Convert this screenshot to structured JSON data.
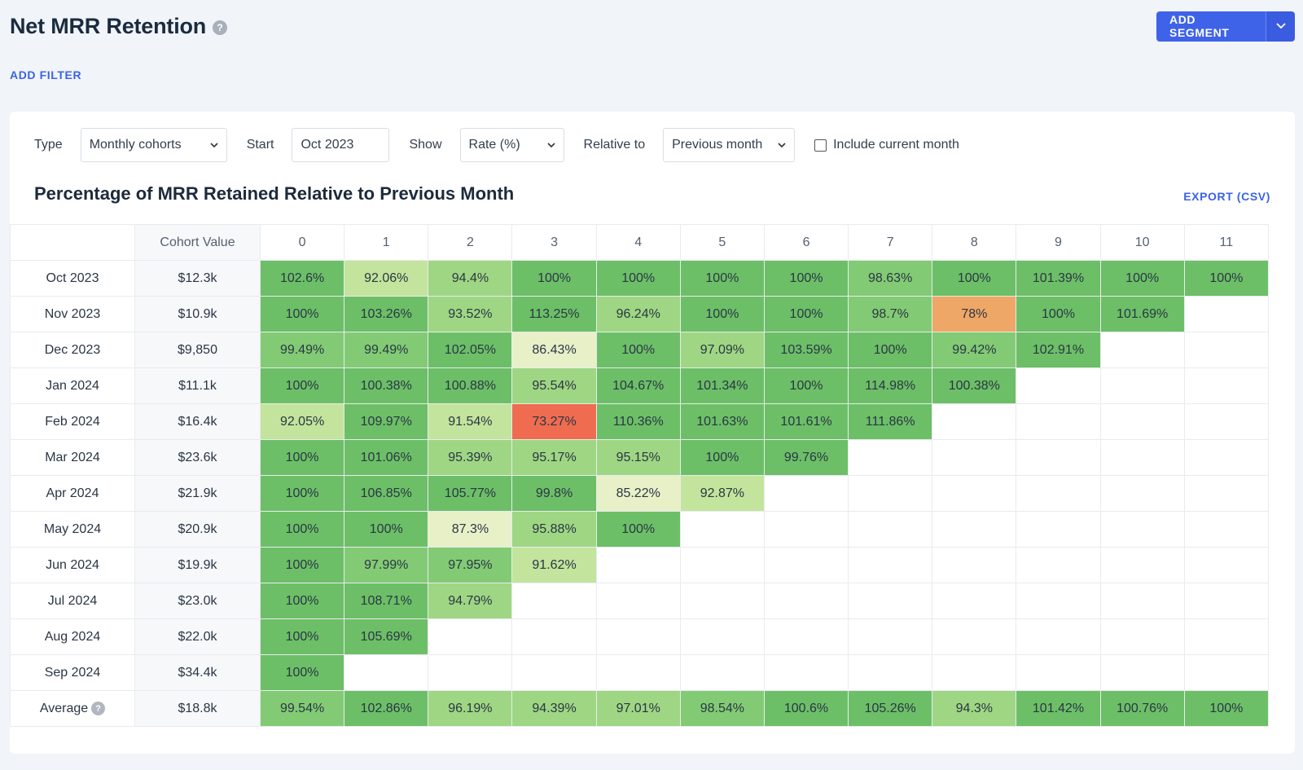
{
  "header": {
    "title": "Net MRR Retention",
    "help_icon": "?",
    "add_segment_label": "ADD SEGMENT",
    "add_filter_label": "ADD FILTER"
  },
  "controls": {
    "type_label": "Type",
    "type_value": "Monthly cohorts",
    "start_label": "Start",
    "start_value": "Oct 2023",
    "show_label": "Show",
    "show_value": "Rate (%)",
    "relative_label": "Relative to",
    "relative_value": "Previous month",
    "include_current_label": "Include current month",
    "include_current_checked": false
  },
  "section": {
    "title": "Percentage of MRR Retained Relative to Previous Month",
    "export_label": "EXPORT (CSV)"
  },
  "colors": {
    "accent": "#3f63e8",
    "link": "#3a63e6",
    "scale": [
      "#ef6c50",
      "#eea766",
      "#e8f0c8",
      "#c3e49c",
      "#9fd683",
      "#82cb74",
      "#6cbf67"
    ]
  },
  "table": {
    "header_value": "Cohort Value",
    "periods": [
      "0",
      "1",
      "2",
      "3",
      "4",
      "5",
      "6",
      "7",
      "8",
      "9",
      "10",
      "11"
    ],
    "rows": [
      {
        "cohort": "Oct 2023",
        "value": "$12.3k",
        "cells": [
          "102.6%",
          "92.06%",
          "94.4%",
          "100%",
          "100%",
          "100%",
          "100%",
          "98.63%",
          "100%",
          "101.39%",
          "100%",
          "100%"
        ]
      },
      {
        "cohort": "Nov 2023",
        "value": "$10.9k",
        "cells": [
          "100%",
          "103.26%",
          "93.52%",
          "113.25%",
          "96.24%",
          "100%",
          "100%",
          "98.7%",
          "78%",
          "100%",
          "101.69%"
        ]
      },
      {
        "cohort": "Dec 2023",
        "value": "$9,850",
        "cells": [
          "99.49%",
          "99.49%",
          "102.05%",
          "86.43%",
          "100%",
          "97.09%",
          "103.59%",
          "100%",
          "99.42%",
          "102.91%"
        ]
      },
      {
        "cohort": "Jan 2024",
        "value": "$11.1k",
        "cells": [
          "100%",
          "100.38%",
          "100.88%",
          "95.54%",
          "104.67%",
          "101.34%",
          "100%",
          "114.98%",
          "100.38%"
        ]
      },
      {
        "cohort": "Feb 2024",
        "value": "$16.4k",
        "cells": [
          "92.05%",
          "109.97%",
          "91.54%",
          "73.27%",
          "110.36%",
          "101.63%",
          "101.61%",
          "111.86%"
        ]
      },
      {
        "cohort": "Mar 2024",
        "value": "$23.6k",
        "cells": [
          "100%",
          "101.06%",
          "95.39%",
          "95.17%",
          "95.15%",
          "100%",
          "99.76%"
        ]
      },
      {
        "cohort": "Apr 2024",
        "value": "$21.9k",
        "cells": [
          "100%",
          "106.85%",
          "105.77%",
          "99.8%",
          "85.22%",
          "92.87%"
        ]
      },
      {
        "cohort": "May 2024",
        "value": "$20.9k",
        "cells": [
          "100%",
          "100%",
          "87.3%",
          "95.88%",
          "100%"
        ]
      },
      {
        "cohort": "Jun 2024",
        "value": "$19.9k",
        "cells": [
          "100%",
          "97.99%",
          "97.95%",
          "91.62%"
        ]
      },
      {
        "cohort": "Jul 2024",
        "value": "$23.0k",
        "cells": [
          "100%",
          "108.71%",
          "94.79%"
        ]
      },
      {
        "cohort": "Aug 2024",
        "value": "$22.0k",
        "cells": [
          "100%",
          "105.69%"
        ]
      },
      {
        "cohort": "Sep 2024",
        "value": "$34.4k",
        "cells": [
          "100%"
        ]
      }
    ],
    "average": {
      "label": "Average",
      "value": "$18.8k",
      "cells": [
        "99.54%",
        "102.86%",
        "96.19%",
        "94.39%",
        "97.01%",
        "98.54%",
        "100.6%",
        "105.26%",
        "94.3%",
        "101.42%",
        "100.76%",
        "100%"
      ]
    }
  }
}
